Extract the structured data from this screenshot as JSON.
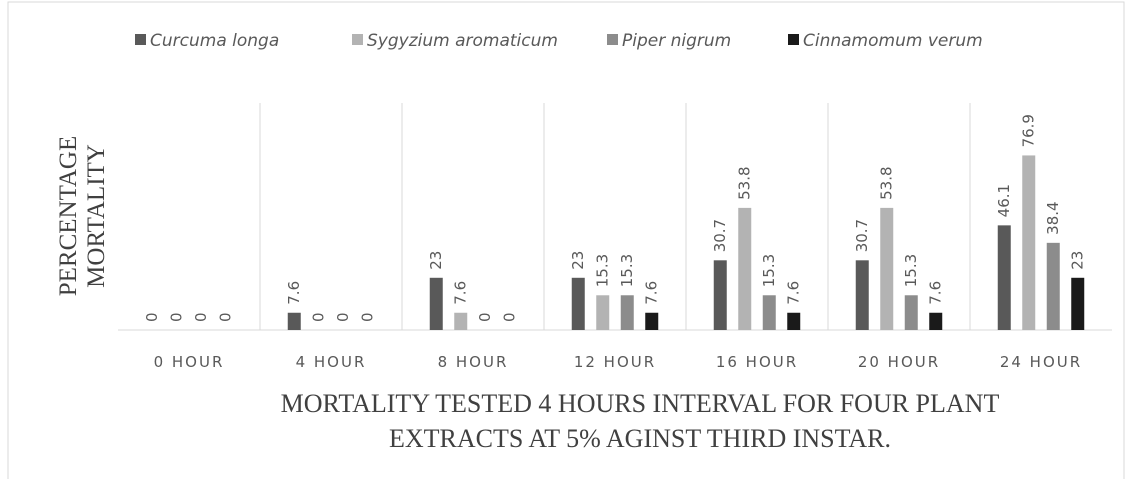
{
  "chart_data": {
    "type": "bar",
    "ylabel": [
      "PERCENTAGE",
      "MORTALITY"
    ],
    "xlabel": [
      "MORTALITY TESTED 4 HOURS INTERVAL FOR FOUR PLANT",
      "EXTRACTS AT 5% AGINST THIRD INSTAR."
    ],
    "categories": [
      "0 HOUR",
      "4 HOUR",
      "8 HOUR",
      "12 HOUR",
      "16 HOUR",
      "20 HOUR",
      "24 HOUR"
    ],
    "series": [
      {
        "name": "Curcuma longa",
        "color": "#595959",
        "values": [
          0,
          7.6,
          23,
          23,
          30.7,
          30.7,
          46.1
        ]
      },
      {
        "name": "Sygyzium aromaticum",
        "color": "#b3b3b3",
        "values": [
          0,
          0,
          7.6,
          15.3,
          53.8,
          53.8,
          76.9
        ]
      },
      {
        "name": "Piper nigrum",
        "color": "#8c8c8c",
        "values": [
          0,
          0,
          0,
          15.3,
          15.3,
          15.3,
          38.4
        ]
      },
      {
        "name": "Cinnamomum verum",
        "color": "#1a1a1a",
        "values": [
          0,
          0,
          0,
          7.6,
          7.6,
          7.6,
          23
        ]
      }
    ],
    "ylim": [
      0,
      100
    ],
    "legend": "top"
  }
}
